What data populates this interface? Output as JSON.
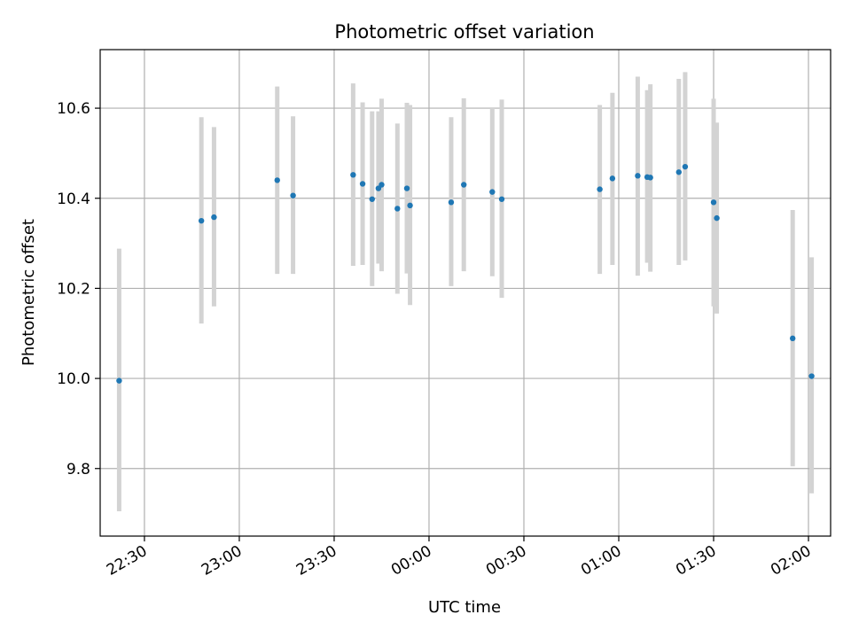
{
  "chart_data": {
    "type": "scatter",
    "title": "Photometric offset variation",
    "xlabel": "UTC time",
    "ylabel": "Photometric offset",
    "x_axis_type": "time",
    "x_unit": "HH:MM (UTC)",
    "xlim": [
      "22:16",
      "02:07"
    ],
    "ylim": [
      9.65,
      10.73
    ],
    "x_ticks": [
      "22:30",
      "23:00",
      "23:30",
      "00:00",
      "00:30",
      "01:00",
      "01:30",
      "02:00"
    ],
    "y_ticks": [
      9.8,
      10.0,
      10.2,
      10.4,
      10.6
    ],
    "grid": true,
    "series": [
      {
        "points": [
          {
            "x": "22:22",
            "y": 9.995,
            "ymin": 9.705,
            "ymax": 10.288
          },
          {
            "x": "22:48",
            "y": 10.35,
            "ymin": 10.122,
            "ymax": 10.58
          },
          {
            "x": "22:52",
            "y": 10.358,
            "ymin": 10.16,
            "ymax": 10.558
          },
          {
            "x": "23:12",
            "y": 10.44,
            "ymin": 10.232,
            "ymax": 10.648
          },
          {
            "x": "23:17",
            "y": 10.406,
            "ymin": 10.232,
            "ymax": 10.582
          },
          {
            "x": "23:36",
            "y": 10.452,
            "ymin": 10.25,
            "ymax": 10.655
          },
          {
            "x": "23:39",
            "y": 10.432,
            "ymin": 10.252,
            "ymax": 10.613
          },
          {
            "x": "23:42",
            "y": 10.398,
            "ymin": 10.205,
            "ymax": 10.593
          },
          {
            "x": "23:44",
            "y": 10.422,
            "ymin": 10.255,
            "ymax": 10.593
          },
          {
            "x": "23:45",
            "y": 10.43,
            "ymin": 10.238,
            "ymax": 10.621
          },
          {
            "x": "23:50",
            "y": 10.377,
            "ymin": 10.188,
            "ymax": 10.566
          },
          {
            "x": "23:53",
            "y": 10.422,
            "ymin": 10.233,
            "ymax": 10.612
          },
          {
            "x": "23:54",
            "y": 10.384,
            "ymin": 10.163,
            "ymax": 10.607
          },
          {
            "x": "00:07",
            "y": 10.391,
            "ymin": 10.205,
            "ymax": 10.58
          },
          {
            "x": "00:11",
            "y": 10.43,
            "ymin": 10.238,
            "ymax": 10.622
          },
          {
            "x": "00:20",
            "y": 10.414,
            "ymin": 10.227,
            "ymax": 10.602
          },
          {
            "x": "00:23",
            "y": 10.398,
            "ymin": 10.179,
            "ymax": 10.619
          },
          {
            "x": "00:54",
            "y": 10.42,
            "ymin": 10.232,
            "ymax": 10.607
          },
          {
            "x": "00:58",
            "y": 10.444,
            "ymin": 10.252,
            "ymax": 10.634
          },
          {
            "x": "01:06",
            "y": 10.45,
            "ymin": 10.228,
            "ymax": 10.67
          },
          {
            "x": "01:09",
            "y": 10.447,
            "ymin": 10.257,
            "ymax": 10.64
          },
          {
            "x": "01:10",
            "y": 10.446,
            "ymin": 10.237,
            "ymax": 10.653
          },
          {
            "x": "01:19",
            "y": 10.458,
            "ymin": 10.252,
            "ymax": 10.665
          },
          {
            "x": "01:21",
            "y": 10.47,
            "ymin": 10.262,
            "ymax": 10.68
          },
          {
            "x": "01:30",
            "y": 10.391,
            "ymin": 10.16,
            "ymax": 10.621
          },
          {
            "x": "01:31",
            "y": 10.356,
            "ymin": 10.144,
            "ymax": 10.568
          },
          {
            "x": "01:55",
            "y": 10.089,
            "ymin": 9.805,
            "ymax": 10.374
          },
          {
            "x": "02:01",
            "y": 10.005,
            "ymin": 9.745,
            "ymax": 10.269
          }
        ]
      }
    ],
    "colors": {
      "point": "#1f77b4",
      "errorbar": "#d3d3d3",
      "grid": "#b0b0b0",
      "axes": "#000000"
    }
  }
}
